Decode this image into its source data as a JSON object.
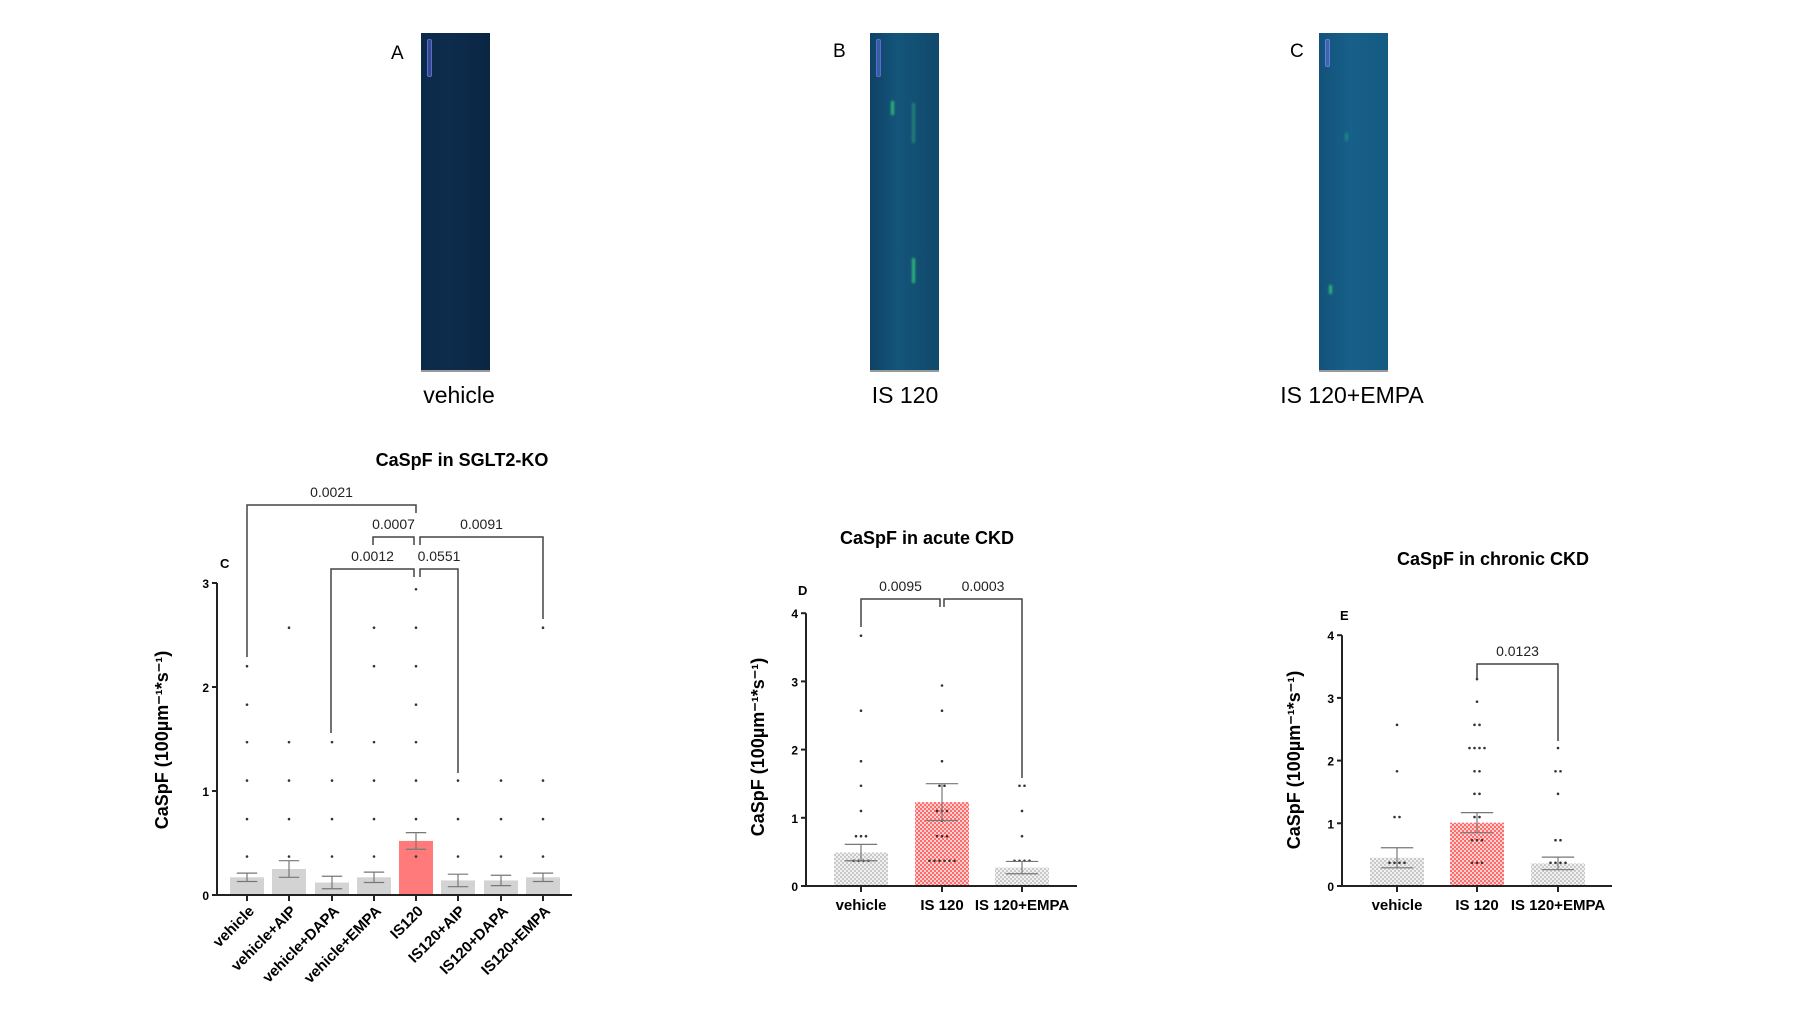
{
  "images": [
    {
      "letter": "A",
      "caption": "vehicle"
    },
    {
      "letter": "B",
      "caption": "IS 120"
    },
    {
      "letter": "C",
      "caption": "IS 120+EMPA"
    }
  ],
  "colors": {
    "grey_bar": "#d3d3d3",
    "red_bar": "#ff7b7b",
    "axis": "#222222",
    "bracket": "#444444"
  },
  "chart_data": [
    {
      "type": "bar",
      "panel": "C",
      "title": "CaSpF in SGLT2-KO",
      "ylabel": "CaSpF (100µm⁻¹*s⁻¹)",
      "ylim": [
        0,
        3
      ],
      "yticks": [
        "0",
        "1",
        "2",
        "3"
      ],
      "categories": [
        "vehicle",
        "vehicle+AIP",
        "vehicle+DAPA",
        "vehicle+EMPA",
        "IS120",
        "IS120+AIP",
        "IS120+DAPA",
        "IS120+EMPA"
      ],
      "values": [
        0.17,
        0.25,
        0.12,
        0.17,
        0.52,
        0.14,
        0.14,
        0.17
      ],
      "sem": [
        0.04,
        0.08,
        0.06,
        0.05,
        0.08,
        0.06,
        0.05,
        0.04
      ],
      "highlight": [
        false,
        false,
        false,
        false,
        true,
        false,
        false,
        false
      ],
      "points": [
        [
          0.37,
          0.73,
          1.1,
          1.47,
          1.83,
          2.2
        ],
        [
          0.37,
          0.73,
          1.1,
          1.47,
          2.57
        ],
        [
          0.37,
          0.73,
          1.1,
          1.47
        ],
        [
          0.37,
          0.73,
          1.1,
          1.47,
          2.2,
          2.57
        ],
        [
          0.37,
          0.73,
          1.1,
          1.47,
          1.83,
          2.2,
          2.57,
          2.94
        ],
        [
          0.37,
          0.73,
          1.1
        ],
        [
          0.37,
          0.73,
          1.1
        ],
        [
          0.37,
          0.73,
          1.1,
          2.57
        ]
      ],
      "comparisons": [
        {
          "p": "0.0021",
          "groups": [
            "vehicle",
            "IS120"
          ]
        },
        {
          "p": "0.0007",
          "groups": [
            "vehicle+EMPA",
            "IS120"
          ]
        },
        {
          "p": "0.0091",
          "groups": [
            "IS120",
            "IS120+EMPA"
          ]
        },
        {
          "p": "0.0012",
          "groups": [
            "vehicle+DAPA",
            "IS120"
          ]
        },
        {
          "p": "0.0551",
          "groups": [
            "IS120",
            "IS120+AIP"
          ]
        }
      ]
    },
    {
      "type": "bar",
      "panel": "D",
      "title": "CaSpF in acute CKD",
      "ylabel": "CaSpF (100µm⁻¹*s⁻¹)",
      "ylim": [
        0,
        4
      ],
      "yticks": [
        "0",
        "1",
        "2",
        "3",
        "4"
      ],
      "categories": [
        "vehicle",
        "IS 120",
        "IS 120+EMPA"
      ],
      "values": [
        0.49,
        1.23,
        0.27
      ],
      "sem": [
        0.12,
        0.27,
        0.09
      ],
      "highlight": [
        false,
        true,
        false
      ],
      "points": [
        [
          0.37,
          0.37,
          0.37,
          0.37,
          0.73,
          0.73,
          0.73,
          1.1,
          1.47,
          1.83,
          2.57,
          3.67
        ],
        [
          0.37,
          0.37,
          0.37,
          0.37,
          0.37,
          0.37,
          0.73,
          0.73,
          0.73,
          0.96,
          1.1,
          1.1,
          1.1,
          1.47,
          1.47,
          1.83,
          2.57,
          2.94
        ],
        [
          0.37,
          0.37,
          0.37,
          0.37,
          0.73,
          1.1,
          1.47,
          1.47
        ]
      ],
      "comparisons": [
        {
          "p": "0.0095",
          "groups": [
            "vehicle",
            "IS 120"
          ]
        },
        {
          "p": "0.0003",
          "groups": [
            "IS 120",
            "IS 120+EMPA"
          ]
        }
      ]
    },
    {
      "type": "bar",
      "panel": "E",
      "title": "CaSpF in chronic CKD",
      "ylabel": "CaSpF (100µm⁻¹*s⁻¹)",
      "ylim": [
        0,
        4
      ],
      "yticks": [
        "0",
        "1",
        "2",
        "3",
        "4"
      ],
      "categories": [
        "vehicle",
        "IS 120",
        "IS 120+EMPA"
      ],
      "values": [
        0.45,
        1.01,
        0.36
      ],
      "sem": [
        0.16,
        0.16,
        0.1
      ],
      "highlight": [
        false,
        true,
        false
      ],
      "points": [
        [
          0.37,
          0.37,
          0.37,
          0.37,
          1.1,
          1.1,
          1.83,
          2.57
        ],
        [
          0.37,
          0.37,
          0.37,
          0.73,
          0.73,
          0.73,
          1.1,
          1.1,
          1.47,
          1.47,
          1.83,
          1.83,
          2.2,
          2.2,
          2.2,
          2.2,
          2.57,
          2.57,
          2.94,
          3.3
        ],
        [
          0.37,
          0.37,
          0.37,
          0.37,
          0.73,
          0.73,
          1.47,
          1.83,
          1.83,
          2.2
        ]
      ],
      "comparisons": [
        {
          "p": "0.0123",
          "groups": [
            "IS 120",
            "IS 120+EMPA"
          ]
        }
      ]
    }
  ]
}
